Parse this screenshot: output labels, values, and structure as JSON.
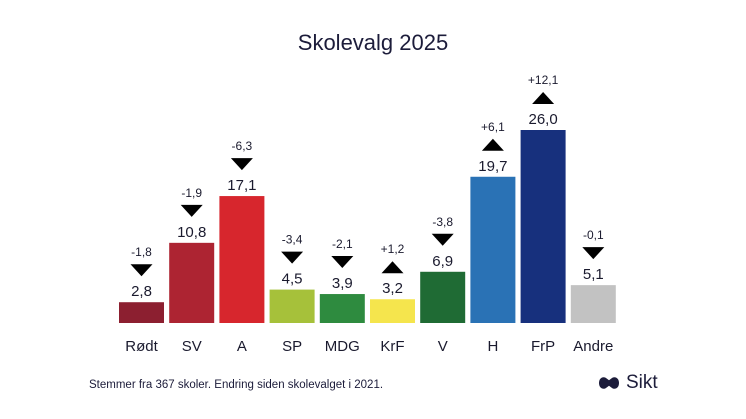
{
  "chart_data": {
    "type": "bar",
    "title": "Skolevalg 2025",
    "categories": [
      "Rødt",
      "SV",
      "A",
      "SP",
      "MDG",
      "KrF",
      "V",
      "H",
      "FrP",
      "Andre"
    ],
    "values": [
      2.8,
      10.8,
      17.1,
      4.5,
      3.9,
      3.2,
      6.9,
      19.7,
      26.0,
      5.1
    ],
    "value_labels": [
      "2,8",
      "10,8",
      "17,1",
      "4,5",
      "3,9",
      "3,2",
      "6,9",
      "19,7",
      "26,0",
      "5,1"
    ],
    "changes": [
      -1.8,
      -1.9,
      -6.3,
      -3.4,
      -2.1,
      1.2,
      -3.8,
      6.1,
      12.1,
      -0.1
    ],
    "change_labels": [
      "-1,8",
      "-1,9",
      "-6,3",
      "-3,4",
      "-2,1",
      "+1,2",
      "-3,8",
      "+6,1",
      "+12,1",
      "-0,1"
    ],
    "colors": [
      "#8c1f30",
      "#ad2432",
      "#d7262d",
      "#a6c13a",
      "#2e8b3f",
      "#f5e54d",
      "#1f6b34",
      "#2a72b5",
      "#17307d",
      "#c2c2c2"
    ],
    "ylim": [
      0,
      26.0
    ],
    "grid": false,
    "legend": "none"
  },
  "footnote": "Stemmer fra 367 skoler. Endring siden skolevalget i 2021.",
  "logo": {
    "text": "Sikt",
    "color": "#1c1c3a"
  }
}
